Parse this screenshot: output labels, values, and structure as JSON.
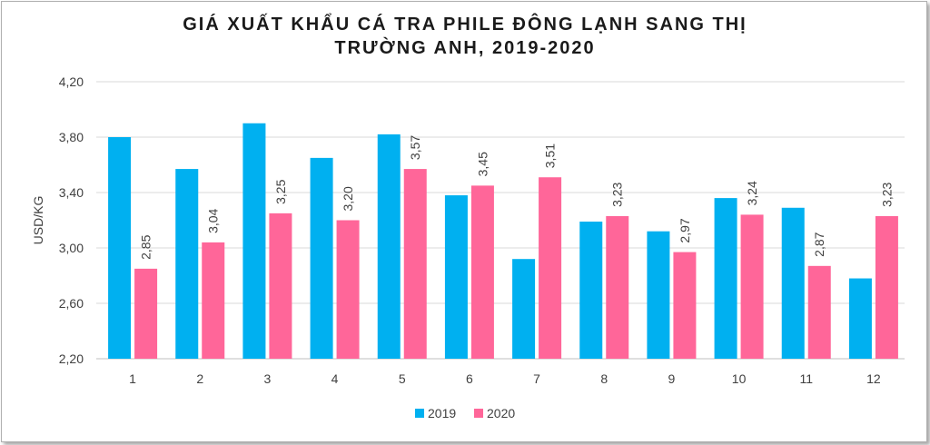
{
  "chart_data": {
    "type": "bar",
    "title_line1": "GIÁ XUẤT KHẨU CÁ TRA PHILE ĐÔNG LẠNH SANG THỊ",
    "title_line2": "TRƯỜNG ANH, 2019-2020",
    "ylabel": "USD/KG",
    "xlabel": "",
    "ylim": [
      2.2,
      4.2
    ],
    "yticks": [
      "2,20",
      "2,60",
      "3,00",
      "3,40",
      "3,80",
      "4,20"
    ],
    "ytick_values": [
      2.2,
      2.6,
      3.0,
      3.4,
      3.8,
      4.2
    ],
    "categories": [
      "1",
      "2",
      "3",
      "4",
      "5",
      "6",
      "7",
      "8",
      "9",
      "10",
      "11",
      "12"
    ],
    "series": [
      {
        "name": "2019",
        "color": "#00b0f0",
        "values": [
          3.8,
          3.57,
          3.9,
          3.65,
          3.82,
          3.38,
          2.92,
          3.19,
          3.12,
          3.36,
          3.29,
          2.78
        ],
        "labels": []
      },
      {
        "name": "2020",
        "color": "#ff6699",
        "values": [
          2.85,
          3.04,
          3.25,
          3.2,
          3.57,
          3.45,
          3.51,
          3.23,
          2.97,
          3.24,
          2.87,
          3.23
        ],
        "labels": [
          "2,85",
          "3,04",
          "3,25",
          "3,20",
          "3,57",
          "3,45",
          "3,51",
          "3,23",
          "2,97",
          "3,24",
          "2,87",
          "3,23"
        ]
      }
    ],
    "grid": true,
    "legend": "bottom"
  }
}
